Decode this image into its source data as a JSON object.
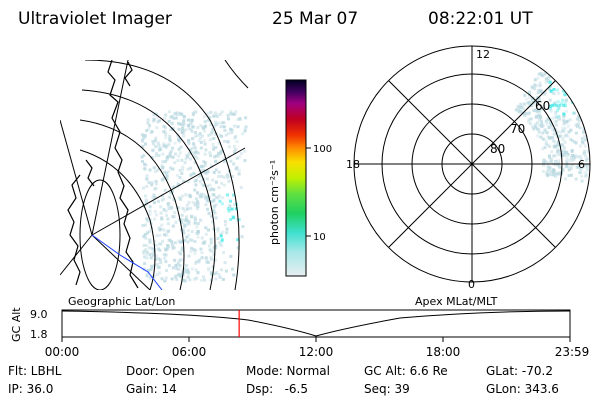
{
  "header": {
    "instrument": "Ultraviolet Imager",
    "date": "25 Mar 07",
    "time": "08:22:01 UT"
  },
  "colorbar": {
    "unit_label": "photon cm⁻²s⁻¹",
    "tick_labels": [
      "100",
      "10"
    ]
  },
  "left_panel": {
    "caption": "Geographic Lat/Lon"
  },
  "right_panel": {
    "caption": "Apex MLat/MLT",
    "mlt_labels": [
      "12",
      "18",
      "6",
      "0"
    ],
    "lat_labels": [
      "60",
      "70",
      "80"
    ]
  },
  "timeline": {
    "y_label": "GC Alt",
    "y_ticks": [
      "9.0",
      "1.8"
    ],
    "x_ticks": [
      "00:00",
      "06:00",
      "12:00",
      "18:00",
      "23:59"
    ],
    "current_time_fraction": 0.3487
  },
  "status": {
    "filter": "Flt: LBHL",
    "ip": "IP: 36.0",
    "door": "Door: Open",
    "gain": "Gain: 14",
    "mode": "Mode: Normal",
    "dsp": "Dsp:   -6.5",
    "gc_alt": "GC Alt: 6.6 Re",
    "seq": "Seq: 39",
    "glat": "GLat: -70.2",
    "glon": "GLon: 343.6"
  },
  "colors": {
    "blue_line": "#2040ff",
    "marker": "#ff0000",
    "emission": "#b8d8e0",
    "emission_hi": "#40e8e8"
  }
}
